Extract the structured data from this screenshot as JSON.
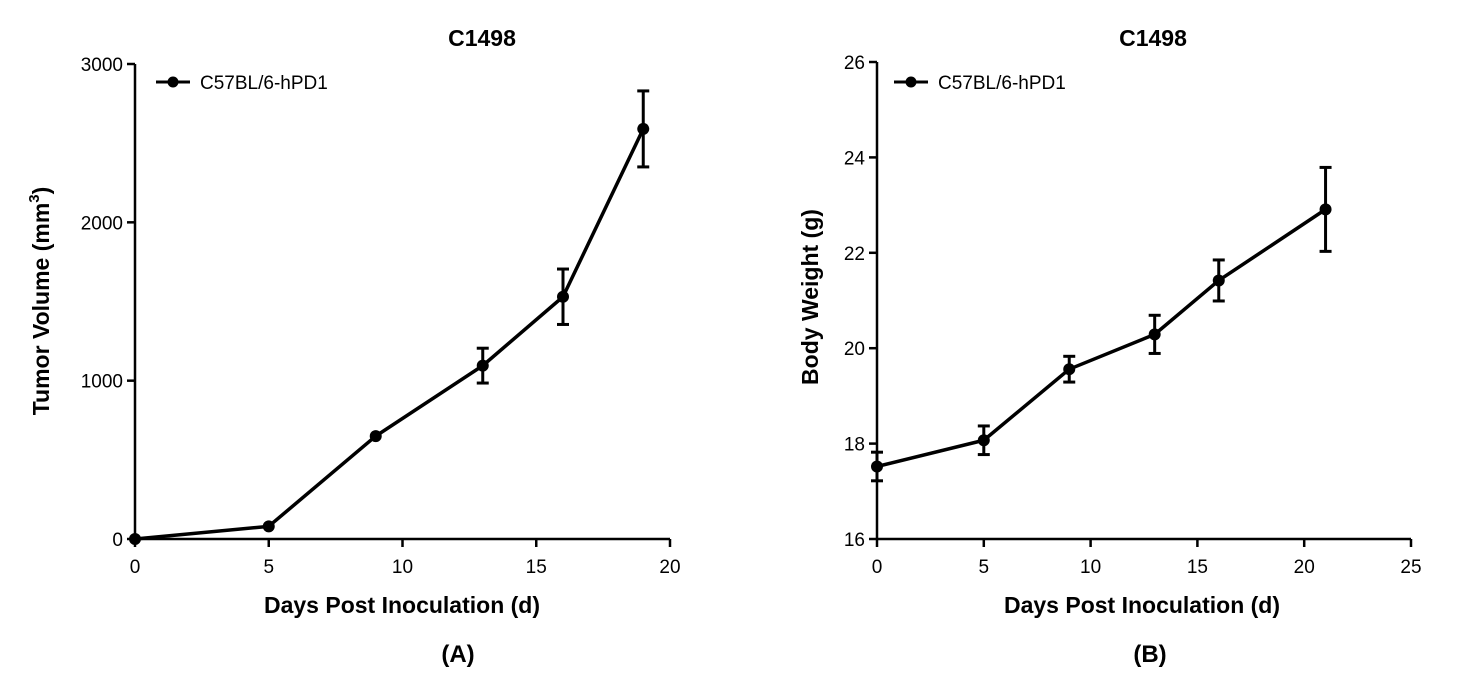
{
  "chart_data": [
    {
      "type": "line",
      "panel_label": "(A)",
      "title": "C1498",
      "xlabel": "Days Post Inoculation (d)",
      "ylabel_prefix": "Tumor Volume (mm",
      "ylabel_sup": "3",
      "ylabel_suffix": ")",
      "xlim": [
        0,
        20
      ],
      "ylim": [
        0,
        3000
      ],
      "xticks": [
        0,
        5,
        10,
        15,
        20
      ],
      "yticks": [
        0,
        1000,
        2000,
        3000
      ],
      "legend_position": "top-left",
      "series": [
        {
          "name": "C57BL/6-hPD1",
          "x": [
            0,
            5,
            9,
            13,
            16,
            19
          ],
          "y": [
            0,
            80,
            650,
            1095,
            1530,
            2590
          ],
          "error": [
            0,
            0,
            0,
            110,
            175,
            240
          ]
        }
      ]
    },
    {
      "type": "line",
      "panel_label": "(B)",
      "title": "C1498",
      "xlabel": "Days Post Inoculation (d)",
      "ylabel": "Body Weight (g)",
      "xlim": [
        0,
        25
      ],
      "ylim": [
        16,
        26
      ],
      "xticks": [
        0,
        5,
        10,
        15,
        20,
        25
      ],
      "yticks": [
        16,
        18,
        20,
        22,
        24,
        26
      ],
      "legend_position": "top-left",
      "series": [
        {
          "name": "C57BL/6-hPD1",
          "x": [
            0,
            5,
            9,
            13,
            16,
            21
          ],
          "y": [
            17.52,
            18.07,
            19.56,
            20.29,
            21.42,
            22.91
          ],
          "error": [
            0.3,
            0.3,
            0.27,
            0.4,
            0.43,
            0.88
          ]
        }
      ]
    }
  ]
}
